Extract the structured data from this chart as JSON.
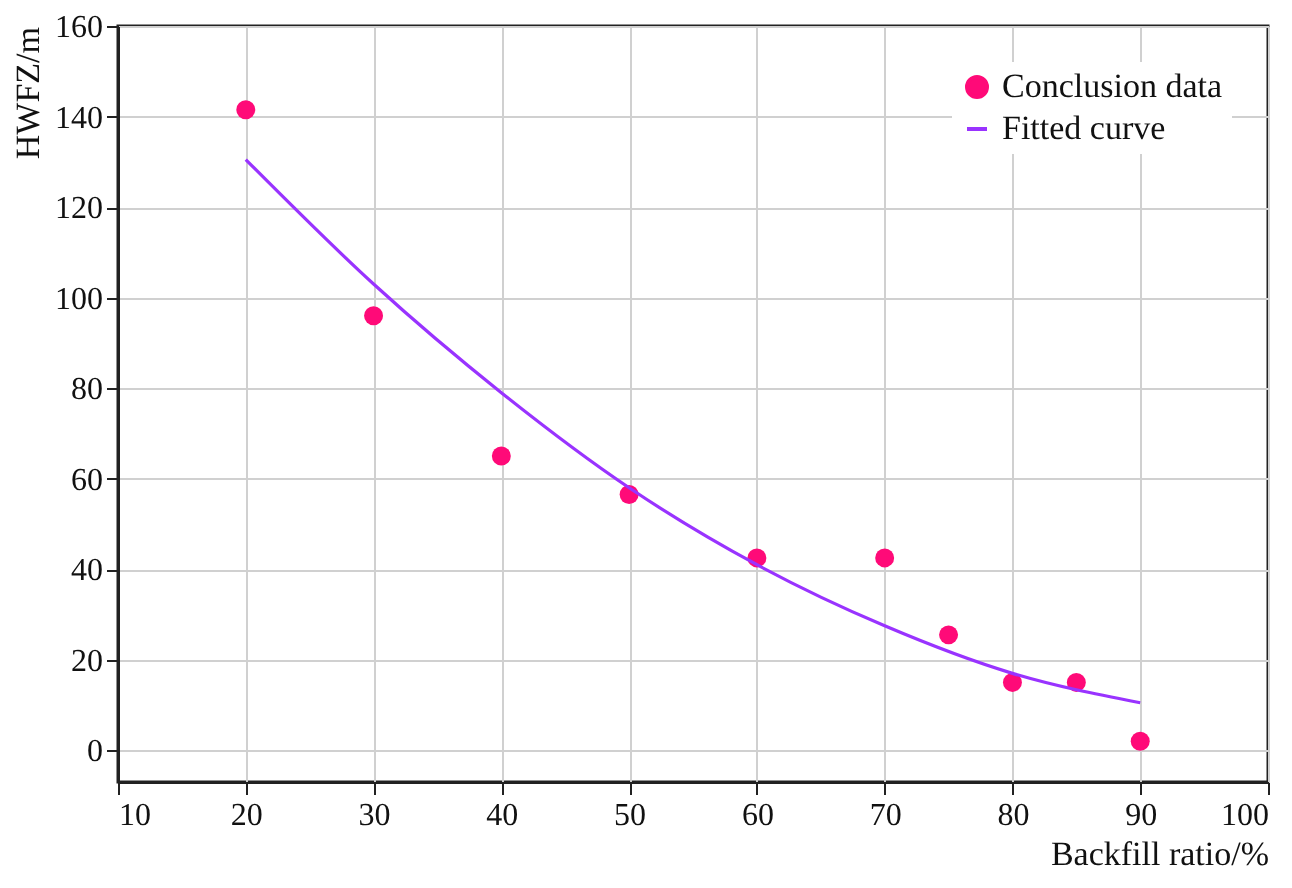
{
  "chart_data": {
    "type": "scatter",
    "xlabel": "Backfill ratio/%",
    "ylabel": "HWFZ/m",
    "xlim": [
      10,
      100
    ],
    "xticks": [
      10,
      20,
      30,
      40,
      50,
      60,
      70,
      80,
      90,
      100
    ],
    "ylim": [
      -7,
      160
    ],
    "yticks": [
      0,
      20,
      40,
      60,
      80,
      100,
      120,
      140,
      160
    ],
    "grid": true,
    "legend": "top right",
    "marker": "circle",
    "series": [
      {
        "name": "Conclusion data",
        "color": "#ff0a78",
        "x": [
          20,
          30,
          40,
          50,
          60,
          70,
          75,
          80,
          85,
          90
        ],
        "values": [
          141.5,
          96,
          65,
          56.5,
          42.5,
          42.5,
          25.5,
          15,
          15,
          2
        ]
      },
      {
        "name": "Fitted curve",
        "type": "line",
        "color": "#9933ff",
        "line_style": "solid",
        "marker": "none",
        "x": [
          20,
          30,
          40,
          50,
          60,
          70,
          80,
          90
        ],
        "values": [
          130.5,
          103,
          79,
          58,
          41,
          27.5,
          17,
          10.5
        ]
      }
    ]
  }
}
